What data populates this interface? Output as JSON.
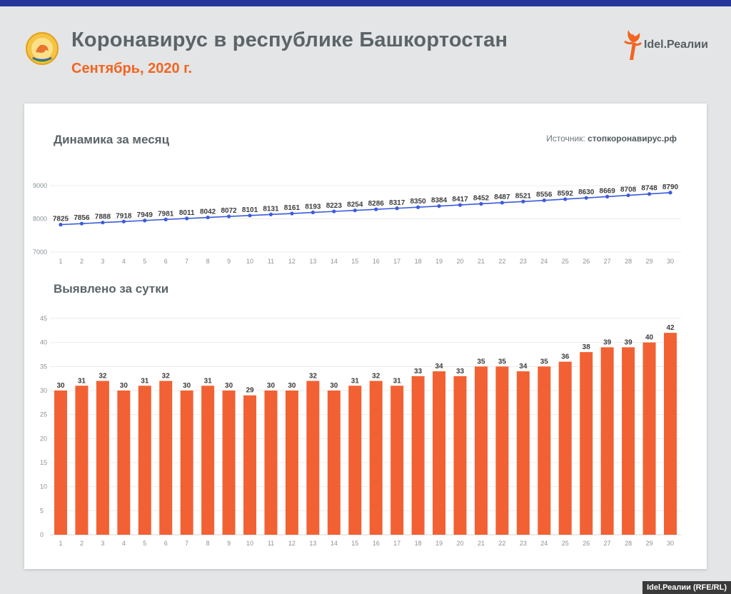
{
  "header": {
    "title": "Коронавирус в республике Башкортостан",
    "subtitle": "Сентябрь, 2020 г.",
    "brand": "Idel.Реалии",
    "emblem_icon": "bashkortostan-emblem-icon",
    "brand_icon": "torch-logo-icon"
  },
  "source": {
    "label": "Источник:",
    "value": "стопкоронавирус.рф"
  },
  "footer": {
    "credit": "Idel.Реалии (RFE/RL)"
  },
  "colors": {
    "accent": "#f26522",
    "line": "#3b5bdb",
    "title": "#5b6468",
    "bar": "#f26133",
    "topbar": "#26379b"
  },
  "chart_data": [
    {
      "type": "line",
      "title": "Динамика за месяц",
      "x": [
        1,
        2,
        3,
        4,
        5,
        6,
        7,
        8,
        9,
        10,
        11,
        12,
        13,
        14,
        15,
        16,
        17,
        18,
        19,
        20,
        21,
        22,
        23,
        24,
        25,
        26,
        27,
        28,
        29,
        30
      ],
      "series": [
        {
          "values": [
            7825,
            7856,
            7888,
            7918,
            7949,
            7981,
            8011,
            8042,
            8072,
            8101,
            8131,
            8161,
            8193,
            8223,
            8254,
            8286,
            8317,
            8350,
            8384,
            8417,
            8452,
            8487,
            8521,
            8556,
            8592,
            8630,
            8669,
            8708,
            8748,
            8790
          ]
        }
      ],
      "yticks": [
        7000,
        8000,
        9000
      ],
      "ylim": [
        7000,
        9000
      ],
      "grid": true
    },
    {
      "type": "bar",
      "title": "Выявлено за сутки",
      "categories": [
        1,
        2,
        3,
        4,
        5,
        6,
        7,
        8,
        9,
        10,
        11,
        12,
        13,
        14,
        15,
        16,
        17,
        18,
        19,
        20,
        21,
        22,
        23,
        24,
        25,
        26,
        27,
        28,
        29,
        30
      ],
      "series": [
        {
          "values": [
            30,
            31,
            32,
            30,
            31,
            32,
            30,
            31,
            30,
            29,
            30,
            30,
            32,
            30,
            31,
            32,
            31,
            33,
            34,
            33,
            35,
            35,
            34,
            35,
            36,
            38,
            39,
            39,
            40,
            42
          ]
        }
      ],
      "yticks": [
        0,
        5,
        10,
        15,
        20,
        25,
        30,
        35,
        40,
        45
      ],
      "ylim": [
        0,
        45
      ],
      "grid": true
    }
  ]
}
